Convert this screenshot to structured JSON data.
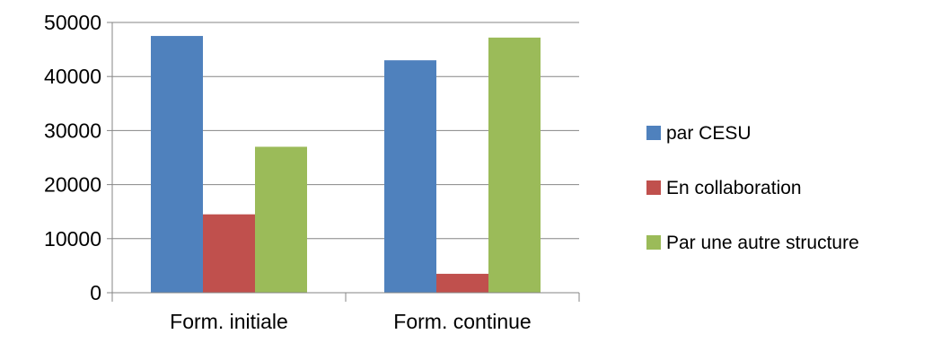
{
  "chart_data": {
    "type": "bar",
    "categories": [
      "Form. initiale",
      "Form. continue"
    ],
    "series": [
      {
        "name": "par CESU",
        "color": "#4f81bd",
        "values": [
          47500,
          43000
        ]
      },
      {
        "name": "En collaboration",
        "color": "#c0504d",
        "values": [
          14500,
          3500
        ]
      },
      {
        "name": "Par une autre structure",
        "color": "#9bbb59",
        "values": [
          27000,
          47200
        ]
      }
    ],
    "ylim": [
      0,
      50000
    ],
    "yticks": [
      "0",
      "10000",
      "20000",
      "30000",
      "40000",
      "50000"
    ],
    "ytick_values": [
      0,
      10000,
      20000,
      30000,
      40000,
      50000
    ],
    "grid": true,
    "legend": "right"
  }
}
